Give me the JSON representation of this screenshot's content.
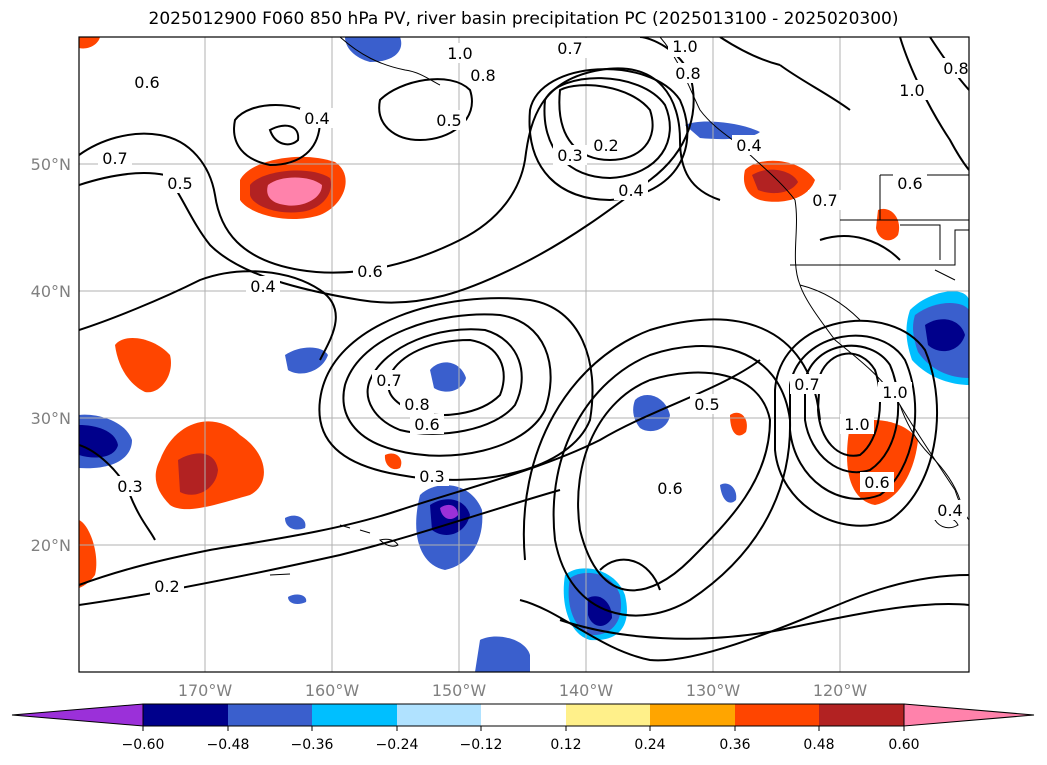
{
  "title": "2025012900 F060 850 hPa PV, river basin precipitation PC (2025013100 - 2025020300)",
  "map": {
    "lon_range": [
      -180,
      -110
    ],
    "lat_range": [
      10,
      60
    ],
    "gridlines": true,
    "lat_labels": [
      "20°N",
      "30°N",
      "40°N",
      "50°N"
    ],
    "lon_labels": [
      "170°W",
      "160°W",
      "150°W",
      "140°W",
      "130°W",
      "120°W"
    ],
    "contour_labels": [
      "0.6",
      "0.4",
      "0.7",
      "0.5",
      "1.0",
      "0.8",
      "0.5",
      "0.7",
      "1.0",
      "0.3",
      "0.2",
      "0.4",
      "0.8",
      "1.0",
      "0.8",
      "0.6",
      "0.4",
      "0.7",
      "0.6",
      "0.4",
      "0.7",
      "0.8",
      "0.6",
      "0.3",
      "0.3",
      "0.2",
      "0.5",
      "0.6",
      "0.7",
      "1.0",
      "0.6",
      "1.0",
      "0.4"
    ]
  },
  "colorbar": {
    "colors": [
      "#9b30d9",
      "#00008b",
      "#3a5fcd",
      "#00bfff",
      "#b0e2ff",
      "#ffffff",
      "#fff08a",
      "#ffa500",
      "#ff4500",
      "#b22222",
      "#ff82ab"
    ],
    "ticks": [
      "−0.60",
      "−0.48",
      "−0.36",
      "−0.24",
      "−0.12",
      "0.12",
      "0.24",
      "0.36",
      "0.48",
      "0.60"
    ]
  }
}
